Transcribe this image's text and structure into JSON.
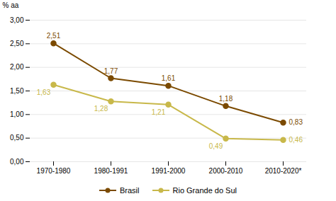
{
  "chart_data": {
    "type": "line",
    "categories": [
      "1970-1980",
      "1980-1991",
      "1991-2000",
      "2000-2010",
      "2010-2020*"
    ],
    "series": [
      {
        "name": "Brasil",
        "color": "#7B4A00",
        "values": [
          2.51,
          1.77,
          1.61,
          1.18,
          0.83
        ],
        "value_labels": [
          "2,51",
          "1,77",
          "1,61",
          "1,18",
          "0,83"
        ]
      },
      {
        "name": "Rio Grande do Sul",
        "color": "#C8B84A",
        "values": [
          1.63,
          1.28,
          1.21,
          0.49,
          0.46
        ],
        "value_labels": [
          "1,63",
          "1,28",
          "1,21",
          "0,49",
          "0,46"
        ]
      }
    ],
    "ylabel": "% aa",
    "ylim": [
      0.0,
      3.0
    ],
    "yticks": [
      {
        "value": 0.0,
        "label": "0,00"
      },
      {
        "value": 0.5,
        "label": "0,50"
      },
      {
        "value": 1.0,
        "label": "1,00"
      },
      {
        "value": 1.5,
        "label": "1,50"
      },
      {
        "value": 2.0,
        "label": "2,00"
      },
      {
        "value": 2.5,
        "label": "2,50"
      },
      {
        "value": 3.0,
        "label": "3,00"
      }
    ],
    "grid": true,
    "legend": "bottom",
    "marker": "circle",
    "data_labels": true
  }
}
